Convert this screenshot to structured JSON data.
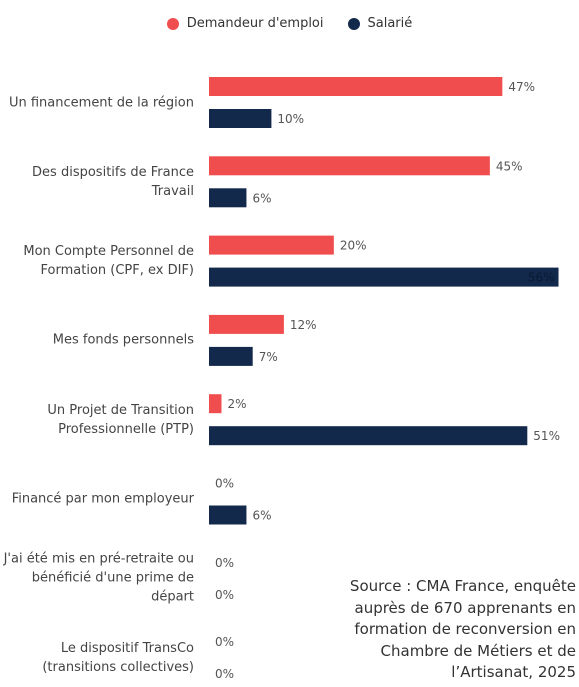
{
  "chart_data": {
    "type": "bar",
    "orientation": "horizontal",
    "categories": [
      "Un financement de la région",
      "Des dispositifs de France Travail",
      "Mon Compte Personnel de Formation (CPF, ex DIF)",
      "Mes fonds personnels",
      "Un Projet de Transition Professionnelle (PTP)",
      "Financé par mon employeur",
      "J'ai été mis en pré-retraite ou bénéficié d'une prime de départ",
      "Le dispositif TransCo (transitions collectives)"
    ],
    "series": [
      {
        "name": "Demandeur d'emploi",
        "color": "#f04e4e",
        "values": [
          47,
          45,
          20,
          12,
          2,
          0,
          0,
          0
        ],
        "value_labels": [
          "47%",
          "45%",
          "20%",
          "12%",
          "2%",
          "0%",
          "0%",
          "0%"
        ]
      },
      {
        "name": "Salarié",
        "color": "#13294b",
        "values": [
          10,
          6,
          56,
          7,
          51,
          6,
          0,
          0
        ],
        "value_labels": [
          "10%",
          "6%",
          "56%",
          "7%",
          "51%",
          "6%",
          "0%",
          "0%"
        ]
      }
    ],
    "xlim": [
      0,
      58
    ],
    "legend": "top",
    "source": [
      "Source : CMA France, enquête",
      "auprès de 670 apprenants en",
      "formation de reconversion en",
      "Chambre de Métiers et de",
      "l’Artisanat, 2025"
    ]
  }
}
